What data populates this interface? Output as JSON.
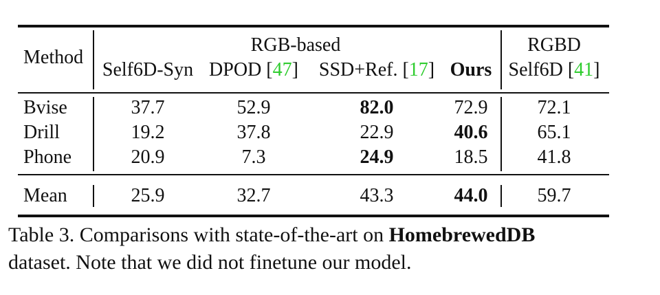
{
  "header": {
    "method": "Method",
    "group_rgb": "RGB-based",
    "group_rgbd": "RGBD",
    "columns": [
      {
        "label": "Self6D-Syn",
        "ref": ""
      },
      {
        "label": "DPOD [",
        "ref": "47",
        "close": "]"
      },
      {
        "label": "SSD+Ref. [",
        "ref": "17",
        "close": "]"
      },
      {
        "label": "Ours",
        "ref": ""
      },
      {
        "label": "Self6D [",
        "ref": "41",
        "close": "]"
      }
    ]
  },
  "rows": [
    {
      "name": "Bvise",
      "values": [
        "37.7",
        "52.9",
        "82.0",
        "72.9",
        "72.1"
      ]
    },
    {
      "name": "Drill",
      "values": [
        "19.2",
        "37.8",
        "22.9",
        "40.6",
        "65.1"
      ]
    },
    {
      "name": "Phone",
      "values": [
        "20.9",
        "7.3",
        "24.9",
        "18.5",
        "41.8"
      ]
    }
  ],
  "mean": {
    "name": "Mean",
    "values": [
      "25.9",
      "32.7",
      "43.3",
      "44.0",
      "59.7"
    ]
  },
  "caption": {
    "prefix": "Table 3. Comparisons with state-of-the-art on ",
    "bold": "HomebrewedDB",
    "line2": "dataset. Note that we did not finetune our model."
  }
}
